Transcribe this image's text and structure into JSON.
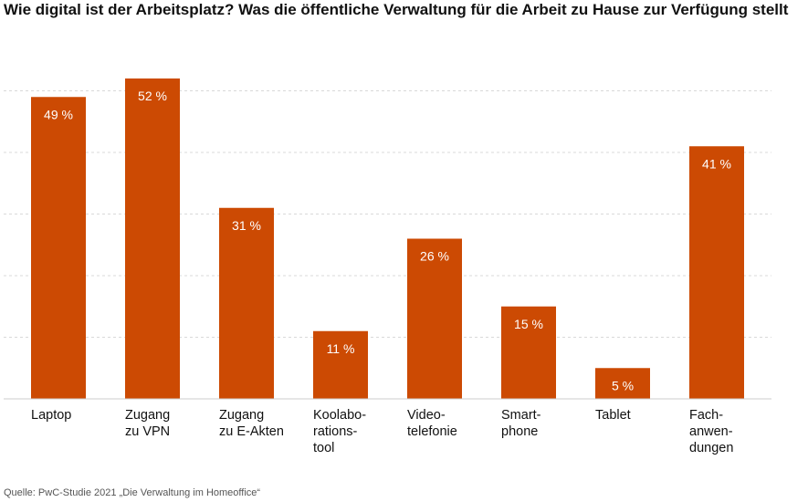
{
  "chart_data": {
    "type": "bar",
    "title": "Wie digital ist der Arbeitsplatz? Was die öffentliche Verwaltung für die Arbeit zu Hause zur Verfügung stellt",
    "categories": [
      "Laptop",
      "Zugang zu VPN",
      "Zugang zu E-Akten",
      "Koolaborationstool",
      "Videotelefonie",
      "Smartphone",
      "Tablet",
      "Fachanwendungen"
    ],
    "category_lines": [
      [
        "Laptop"
      ],
      [
        "Zugang",
        "zu VPN"
      ],
      [
        "Zugang",
        "zu E-Akten"
      ],
      [
        "Koolabo-",
        "rations-",
        "tool"
      ],
      [
        "Video-",
        "telefonie"
      ],
      [
        "Smart-",
        "phone"
      ],
      [
        "Tablet"
      ],
      [
        "Fach-",
        "anwen-",
        "dungen"
      ]
    ],
    "values": [
      49,
      52,
      31,
      11,
      26,
      15,
      5,
      41
    ],
    "value_labels": [
      "49 %",
      "52 %",
      "31 %",
      "11 %",
      "26 %",
      "15 %",
      "5 %",
      "41 %"
    ],
    "unit": "%",
    "ylim": [
      0,
      60
    ],
    "gridlines": [
      10,
      20,
      30,
      40,
      50
    ],
    "grid": true,
    "bar_color": "#cc4a03",
    "source": "Quelle: PwC-Studie 2021 „Die Verwaltung im Homeoffice“"
  }
}
